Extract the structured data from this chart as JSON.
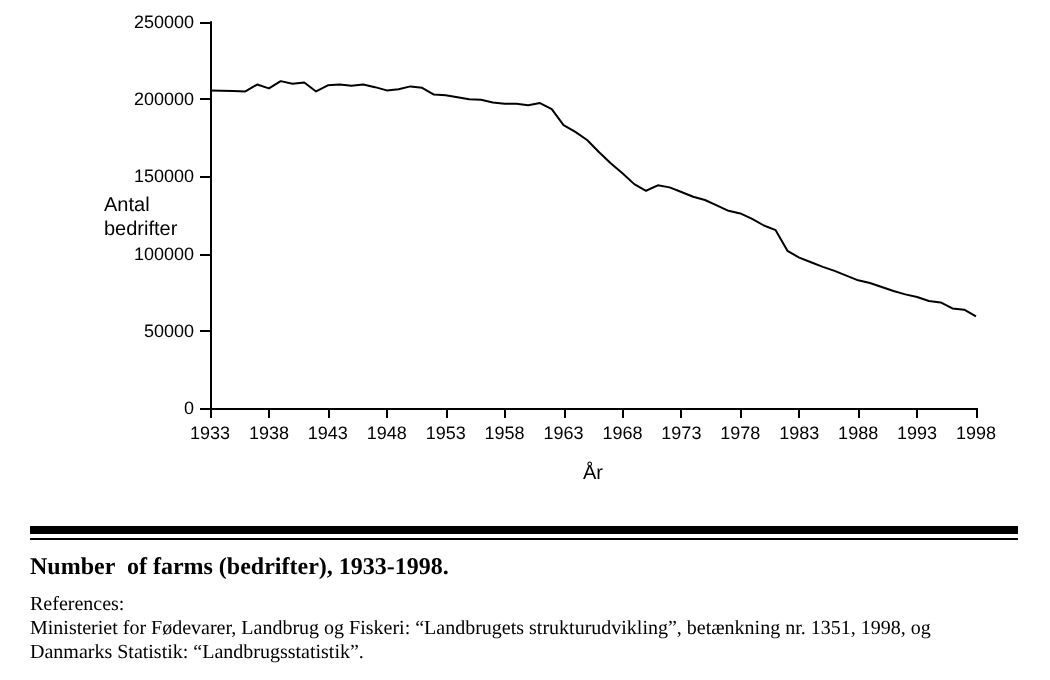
{
  "chart_data": {
    "type": "line",
    "title": "Number  of farms (bedrifter), 1933-1998.",
    "xlabel": "År",
    "ylabel": "Antal bedrifter",
    "annotations": [
      "References:",
      "Ministeriet for Fødevarer, Landbrug og Fiskeri: “Landbrugets strukturudvikling”, betænkning nr. 1351, 1998, og",
      "Danmarks Statistik: “Landbrugsstatistik”."
    ],
    "x": [
      1933,
      1934,
      1935,
      1936,
      1937,
      1938,
      1939,
      1940,
      1941,
      1942,
      1943,
      1944,
      1945,
      1946,
      1947,
      1948,
      1949,
      1950,
      1951,
      1952,
      1953,
      1954,
      1955,
      1956,
      1957,
      1958,
      1959,
      1960,
      1961,
      1962,
      1963,
      1964,
      1965,
      1966,
      1967,
      1968,
      1969,
      1970,
      1971,
      1972,
      1973,
      1974,
      1975,
      1976,
      1977,
      1978,
      1979,
      1980,
      1981,
      1982,
      1983,
      1984,
      1985,
      1986,
      1987,
      1988,
      1989,
      1990,
      1991,
      1992,
      1993,
      1994,
      1995,
      1996,
      1997,
      1998
    ],
    "series": [
      {
        "color": "#000000",
        "values": [
          205700,
          205500,
          205300,
          205000,
          209500,
          207000,
          211700,
          210000,
          210800,
          205000,
          209000,
          209500,
          208700,
          209500,
          207800,
          205700,
          206500,
          208300,
          207400,
          203000,
          202600,
          201300,
          200000,
          199600,
          197900,
          197000,
          197000,
          196100,
          197500,
          193600,
          183200,
          178800,
          173600,
          165800,
          158500,
          152000,
          145000,
          140700,
          144200,
          142900,
          139900,
          136800,
          134700,
          131200,
          127700,
          126000,
          122500,
          118200,
          115200,
          101800,
          97400,
          94400,
          91400,
          88800,
          85700,
          82700,
          81000,
          78400,
          75800,
          73600,
          71900,
          69300,
          68400,
          64500,
          63700,
          59300
        ]
      }
    ],
    "xlim": [
      1933,
      1998
    ],
    "xticks": [
      1933,
      1938,
      1943,
      1948,
      1953,
      1958,
      1963,
      1968,
      1973,
      1978,
      1983,
      1988,
      1993,
      1998
    ],
    "ylim": [
      0,
      250000
    ],
    "yticks": [
      0,
      50000,
      100000,
      150000,
      200000,
      250000
    ],
    "grid": false,
    "marker": "none",
    "line_style": "solid"
  }
}
